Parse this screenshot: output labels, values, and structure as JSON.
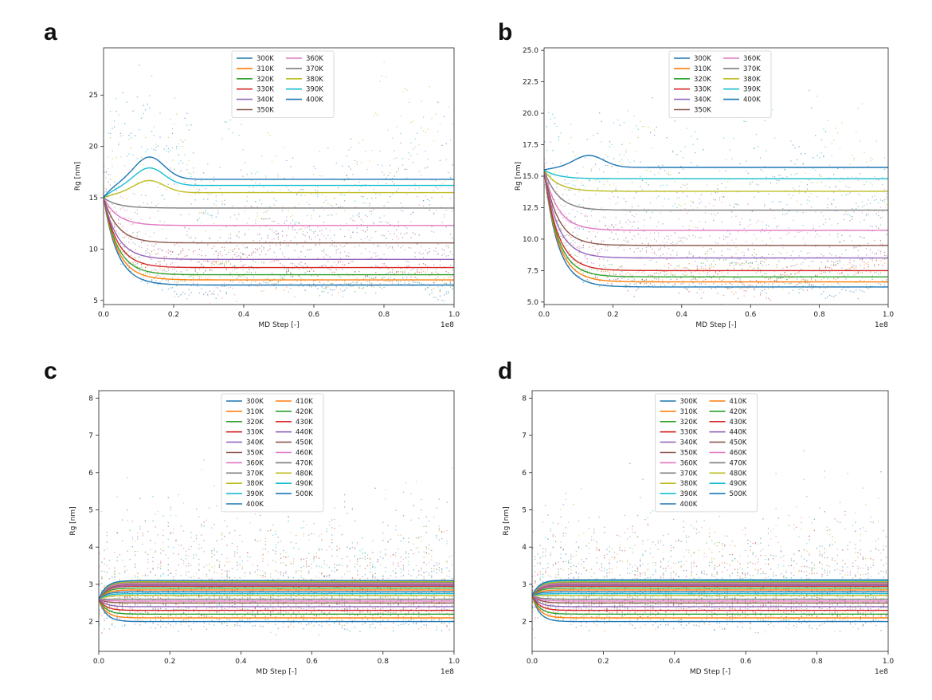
{
  "colors": {
    "palette": [
      "#1f77b4",
      "#ff7f0e",
      "#2ca02c",
      "#d62728",
      "#9467bd",
      "#8c564b",
      "#e377c2",
      "#7f7f7f",
      "#bcbd22",
      "#17becf"
    ]
  },
  "chart_data": [
    {
      "panel": "a",
      "type": "scatter",
      "xlabel": "MD Step [-]",
      "ylabel": "Rg [nm]",
      "x_multiplier": "1e8",
      "xlim": [
        0,
        1.0
      ],
      "ylim": [
        4.6,
        29.6
      ],
      "xticks": [
        "0.0",
        "0.2",
        "0.4",
        "0.6",
        "0.8",
        "1.0"
      ],
      "yticks": [
        5,
        10,
        15,
        20,
        25
      ],
      "legend_position": "top-center",
      "legend_columns": 2,
      "start_value": 15.0,
      "series": [
        {
          "name": "300K",
          "plateau": 6.5,
          "noise": 0.5
        },
        {
          "name": "310K",
          "plateau": 7.0,
          "noise": 0.6
        },
        {
          "name": "320K",
          "plateau": 7.5,
          "noise": 0.6
        },
        {
          "name": "330K",
          "plateau": 8.2,
          "noise": 0.8
        },
        {
          "name": "340K",
          "plateau": 9.0,
          "noise": 1.0
        },
        {
          "name": "350K",
          "plateau": 10.6,
          "noise": 1.5
        },
        {
          "name": "360K",
          "plateau": 12.3,
          "noise": 2.0
        },
        {
          "name": "370K",
          "plateau": 14.0,
          "noise": 2.5
        },
        {
          "name": "380K",
          "plateau": 15.5,
          "noise": 3.0
        },
        {
          "name": "390K",
          "plateau": 16.2,
          "noise": 3.5
        },
        {
          "name": "400K",
          "plateau": 16.8,
          "noise": 4.5
        }
      ]
    },
    {
      "panel": "b",
      "type": "scatter",
      "xlabel": "MD Step [-]",
      "ylabel": "Rg [nm]",
      "x_multiplier": "1e8",
      "xlim": [
        0,
        1.0
      ],
      "ylim": [
        4.8,
        25.2
      ],
      "xticks": [
        "0.0",
        "0.2",
        "0.4",
        "0.6",
        "0.8",
        "1.0"
      ],
      "yticks": [
        5.0,
        7.5,
        10.0,
        12.5,
        15.0,
        17.5,
        20.0,
        22.5,
        25.0
      ],
      "legend_position": "top-center",
      "legend_columns": 2,
      "start_value": 15.5,
      "series": [
        {
          "name": "300K",
          "plateau": 6.2,
          "noise": 0.4
        },
        {
          "name": "310K",
          "plateau": 6.6,
          "noise": 0.5
        },
        {
          "name": "320K",
          "plateau": 7.0,
          "noise": 0.6
        },
        {
          "name": "330K",
          "plateau": 7.5,
          "noise": 0.7
        },
        {
          "name": "340K",
          "plateau": 8.5,
          "noise": 0.9
        },
        {
          "name": "350K",
          "plateau": 9.5,
          "noise": 1.2
        },
        {
          "name": "360K",
          "plateau": 10.7,
          "noise": 1.6
        },
        {
          "name": "370K",
          "plateau": 12.3,
          "noise": 2.0
        },
        {
          "name": "380K",
          "plateau": 13.8,
          "noise": 2.5
        },
        {
          "name": "390K",
          "plateau": 14.8,
          "noise": 3.0
        },
        {
          "name": "400K",
          "plateau": 15.7,
          "noise": 3.5
        }
      ]
    },
    {
      "panel": "c",
      "type": "scatter",
      "xlabel": "MD Step [-]",
      "ylabel": "Rg [nm]",
      "x_multiplier": "1e8",
      "xlim": [
        0,
        1.0
      ],
      "ylim": [
        1.2,
        8.2
      ],
      "xticks": [
        "0.0",
        "0.2",
        "0.4",
        "0.6",
        "0.8",
        "1.0"
      ],
      "yticks": [
        2,
        3,
        4,
        5,
        6,
        7,
        8
      ],
      "legend_position": "top-center",
      "legend_columns": 2,
      "start_value": 2.6,
      "series": [
        {
          "name": "300K",
          "plateau": 2.0,
          "noise": 0.35
        },
        {
          "name": "310K",
          "plateau": 2.1,
          "noise": 0.4
        },
        {
          "name": "320K",
          "plateau": 2.2,
          "noise": 0.4
        },
        {
          "name": "330K",
          "plateau": 2.3,
          "noise": 0.45
        },
        {
          "name": "340K",
          "plateau": 2.4,
          "noise": 0.5
        },
        {
          "name": "350K",
          "plateau": 2.5,
          "noise": 0.55
        },
        {
          "name": "360K",
          "plateau": 2.55,
          "noise": 0.6
        },
        {
          "name": "370K",
          "plateau": 2.6,
          "noise": 0.65
        },
        {
          "name": "380K",
          "plateau": 2.7,
          "noise": 0.7
        },
        {
          "name": "390K",
          "plateau": 2.75,
          "noise": 0.75
        },
        {
          "name": "400K",
          "plateau": 2.8,
          "noise": 0.8
        },
        {
          "name": "410K",
          "plateau": 2.85,
          "noise": 0.85
        },
        {
          "name": "420K",
          "plateau": 2.9,
          "noise": 0.9
        },
        {
          "name": "430K",
          "plateau": 2.95,
          "noise": 0.95
        },
        {
          "name": "440K",
          "plateau": 2.97,
          "noise": 1.0
        },
        {
          "name": "450K",
          "plateau": 3.0,
          "noise": 1.0
        },
        {
          "name": "460K",
          "plateau": 3.02,
          "noise": 1.05
        },
        {
          "name": "470K",
          "plateau": 3.05,
          "noise": 1.1
        },
        {
          "name": "480K",
          "plateau": 3.07,
          "noise": 1.1
        },
        {
          "name": "490K",
          "plateau": 3.1,
          "noise": 1.15
        },
        {
          "name": "500K",
          "plateau": 3.1,
          "noise": 1.2
        }
      ]
    },
    {
      "panel": "d",
      "type": "scatter",
      "xlabel": "MD Step [-]",
      "ylabel": "Rg [nm]",
      "x_multiplier": "1e8",
      "xlim": [
        0,
        1.0
      ],
      "ylim": [
        1.2,
        8.2
      ],
      "xticks": [
        "0.0",
        "0.2",
        "0.4",
        "0.6",
        "0.8",
        "1.0"
      ],
      "yticks": [
        2,
        3,
        4,
        5,
        6,
        7,
        8
      ],
      "legend_position": "top-center",
      "legend_columns": 2,
      "start_value": 2.7,
      "series": [
        {
          "name": "300K",
          "plateau": 2.0,
          "noise": 0.35
        },
        {
          "name": "310K",
          "plateau": 2.1,
          "noise": 0.4
        },
        {
          "name": "320K",
          "plateau": 2.2,
          "noise": 0.4
        },
        {
          "name": "330K",
          "plateau": 2.3,
          "noise": 0.45
        },
        {
          "name": "340K",
          "plateau": 2.4,
          "noise": 0.5
        },
        {
          "name": "350K",
          "plateau": 2.5,
          "noise": 0.55
        },
        {
          "name": "360K",
          "plateau": 2.55,
          "noise": 0.6
        },
        {
          "name": "370K",
          "plateau": 2.6,
          "noise": 0.65
        },
        {
          "name": "380K",
          "plateau": 2.7,
          "noise": 0.7
        },
        {
          "name": "390K",
          "plateau": 2.75,
          "noise": 0.75
        },
        {
          "name": "400K",
          "plateau": 2.8,
          "noise": 0.8
        },
        {
          "name": "410K",
          "plateau": 2.85,
          "noise": 0.85
        },
        {
          "name": "420K",
          "plateau": 2.9,
          "noise": 0.9
        },
        {
          "name": "430K",
          "plateau": 2.95,
          "noise": 0.95
        },
        {
          "name": "440K",
          "plateau": 2.97,
          "noise": 1.0
        },
        {
          "name": "450K",
          "plateau": 3.0,
          "noise": 1.0
        },
        {
          "name": "460K",
          "plateau": 3.02,
          "noise": 1.05
        },
        {
          "name": "470K",
          "plateau": 3.05,
          "noise": 1.1
        },
        {
          "name": "480K",
          "plateau": 3.07,
          "noise": 1.1
        },
        {
          "name": "490K",
          "plateau": 3.1,
          "noise": 1.15
        },
        {
          "name": "500K",
          "plateau": 3.12,
          "noise": 1.2
        }
      ]
    }
  ]
}
